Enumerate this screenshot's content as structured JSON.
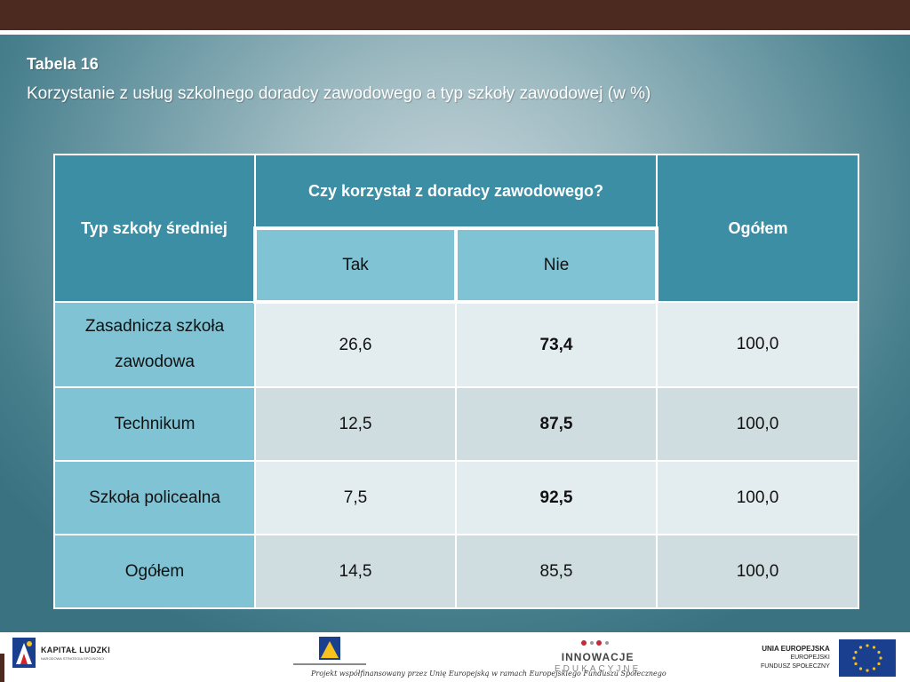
{
  "heading": {
    "label": "Tabela 16",
    "subtitle": "Korzystanie z usług szkolnego doradcy zawodowego a typ szkoły zawodowej (w %)"
  },
  "table": {
    "col_school_type": "Typ szkoły średniej",
    "col_question": "Czy korzystał z doradcy zawodowego?",
    "col_total": "Ogółem",
    "col_yes": "Tak",
    "col_no": "Nie",
    "rows": [
      {
        "school_line1": "Zasadnicza szkoła",
        "school_line2": "zawodowa",
        "yes": "26,6",
        "no": "73,4",
        "total": "100,0"
      },
      {
        "school": "Technikum",
        "yes": "12,5",
        "no": "87,5",
        "total": "100,0"
      },
      {
        "school": "Szkoła policealna",
        "yes": "7,5",
        "no": "92,5",
        "total": "100,0"
      },
      {
        "school": "Ogółem",
        "yes": "14,5",
        "no": "85,5",
        "total": "100,0"
      }
    ]
  },
  "footer": {
    "kapital_ludzki": "KAPITAŁ LUDZKI",
    "kapital_ludzki_sub": "NARODOWA STRATEGIA SPÓJNOŚCI",
    "innowacje": "INNOWACJE",
    "edukacyjne": "EDUKACYJNE",
    "caption": "Projekt współfinansowany przez Unię Europejską w ramach Europejskiego Funduszu Społecznego",
    "ue_line1": "UNIA EUROPEJSKA",
    "ue_line2": "EUROPEJSKI",
    "ue_line3": "FUNDUSZ SPOŁECZNY"
  },
  "colors": {
    "header_dark": "#3c8ea4",
    "header_light": "#7fc3d4",
    "top_bar": "#4d2a20"
  }
}
